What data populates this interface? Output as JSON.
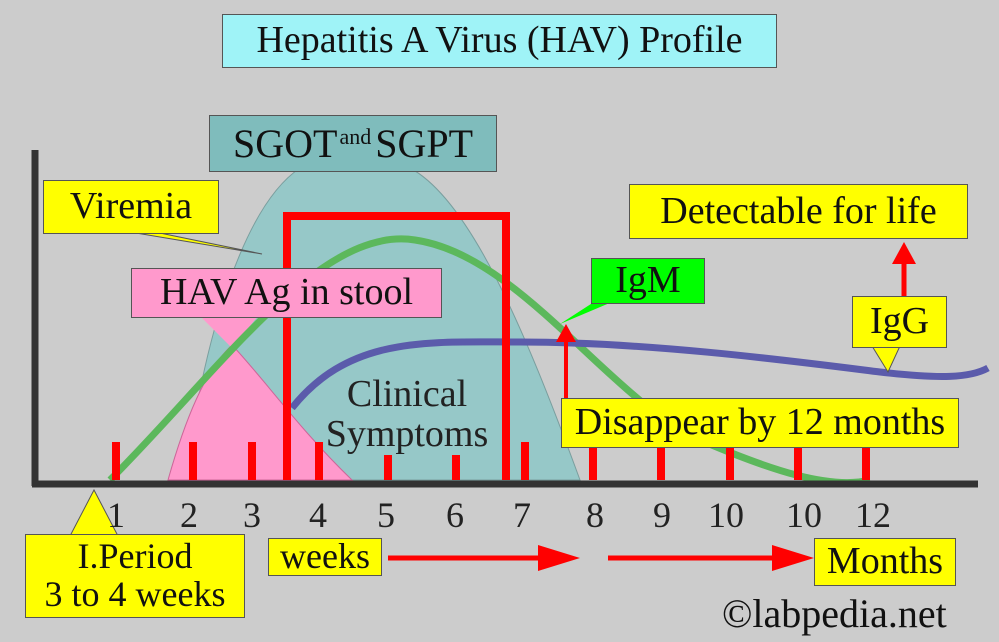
{
  "title": "Hepatitis A Virus (HAV) Profile",
  "labels": {
    "sgot_main_a": "SGOT",
    "sgot_small": "and",
    "sgot_main_b": "SGPT",
    "viremia": "Viremia",
    "hav_ag": "HAV Ag in stool",
    "clinical_line1": "Clinical",
    "clinical_line2": "Symptoms",
    "igm": "IgM",
    "detectable": "Detectable for life",
    "igg": "IgG",
    "disappear": "Disappear by 12 months",
    "iperiod_line1": "I.Period",
    "iperiod_line2": "3 to 4 weeks",
    "weeks": "weeks",
    "months": "Months"
  },
  "tick_labels": [
    "1",
    "2",
    "3",
    "4",
    "5",
    "6",
    "7",
    "8",
    "9",
    "10",
    "10",
    "12"
  ],
  "credit": "©labpedia.net",
  "colors": {
    "background": "#cccccc",
    "title_box": "#9ff3f7",
    "sgot_region": "#96c8c8",
    "hav_region": "#ff99cc",
    "viremia_curve": "#5cb85c",
    "igg_curve": "#5b5bab",
    "red": "#ff0000",
    "label_yellow": "#ffff00",
    "igm_green": "#00ff00"
  }
}
